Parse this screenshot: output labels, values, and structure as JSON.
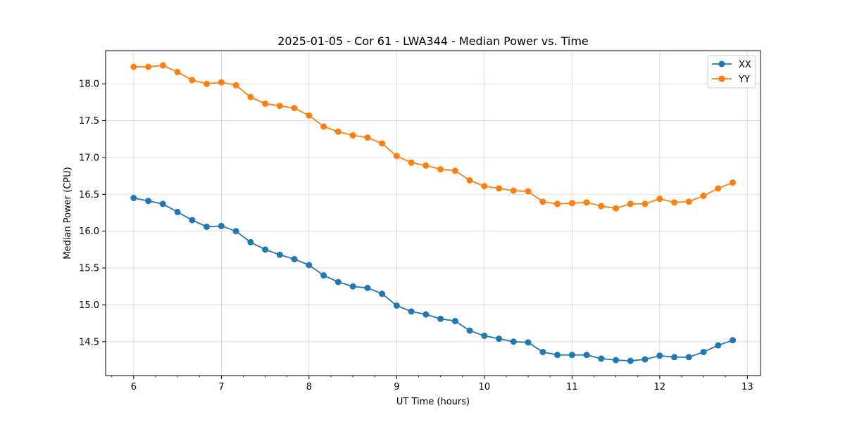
{
  "chart_data": {
    "type": "line",
    "title": "2025-01-05 - Cor 61 - LWA344 - Median Power vs. Time",
    "xlabel": "UT Time (hours)",
    "ylabel": "Median Power (CPU)",
    "xlim": [
      5.68,
      13.15
    ],
    "ylim": [
      14.04,
      18.45
    ],
    "grid": true,
    "legend_position": "top-right",
    "x_ticks": [
      6,
      7,
      8,
      9,
      10,
      11,
      12,
      13
    ],
    "x_tick_labels": [
      "6",
      "7",
      "8",
      "9",
      "10",
      "11",
      "12",
      "13"
    ],
    "y_ticks": [
      14.5,
      15.0,
      15.5,
      16.0,
      16.5,
      17.0,
      17.5,
      18.0
    ],
    "y_tick_labels": [
      "14.5",
      "15.0",
      "15.5",
      "16.0",
      "16.5",
      "17.0",
      "17.5",
      "18.0"
    ],
    "x": [
      6.0,
      6.167,
      6.333,
      6.5,
      6.667,
      6.833,
      7.0,
      7.167,
      7.333,
      7.5,
      7.667,
      7.833,
      8.0,
      8.167,
      8.333,
      8.5,
      8.667,
      8.833,
      9.0,
      9.167,
      9.333,
      9.5,
      9.667,
      9.833,
      10.0,
      10.167,
      10.333,
      10.5,
      10.667,
      10.833,
      11.0,
      11.167,
      11.333,
      11.5,
      11.667,
      11.833,
      12.0,
      12.167,
      12.333,
      12.5,
      12.667,
      12.833
    ],
    "series": [
      {
        "name": "XX",
        "color": "#1f77b4",
        "values": [
          16.45,
          16.41,
          16.37,
          16.26,
          16.15,
          16.06,
          16.07,
          16.0,
          15.85,
          15.75,
          15.68,
          15.62,
          15.54,
          15.4,
          15.31,
          15.25,
          15.23,
          15.15,
          14.99,
          14.91,
          14.87,
          14.81,
          14.78,
          14.65,
          14.58,
          14.54,
          14.5,
          14.49,
          14.36,
          14.32,
          14.32,
          14.32,
          14.27,
          14.25,
          14.24,
          14.26,
          14.31,
          14.29,
          14.29,
          14.36,
          14.45,
          14.52
        ]
      },
      {
        "name": "YY",
        "color": "#ff7f0e",
        "values": [
          18.23,
          18.23,
          18.25,
          18.16,
          18.05,
          18.0,
          18.02,
          17.98,
          17.82,
          17.73,
          17.7,
          17.67,
          17.57,
          17.42,
          17.35,
          17.3,
          17.27,
          17.19,
          17.02,
          16.93,
          16.89,
          16.84,
          16.82,
          16.69,
          16.61,
          16.58,
          16.55,
          16.54,
          16.4,
          16.37,
          16.38,
          16.39,
          16.34,
          16.31,
          16.37,
          16.37,
          16.44,
          16.39,
          16.4,
          16.48,
          16.58,
          16.66
        ]
      }
    ]
  }
}
